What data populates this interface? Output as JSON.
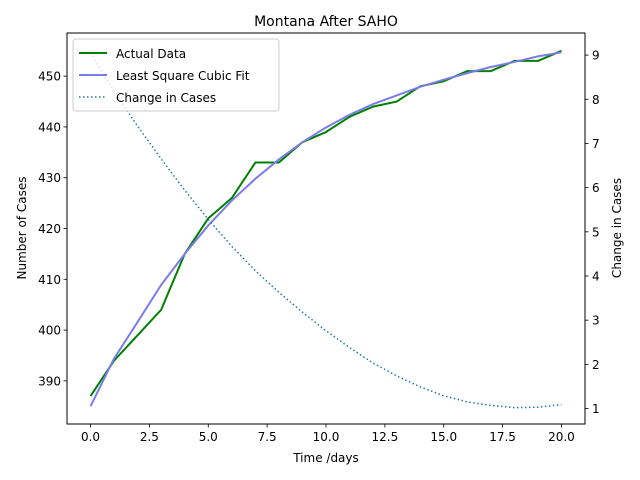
{
  "chart_data": {
    "type": "line",
    "title": "Montana After SAHO",
    "xlabel": "Time /days",
    "ylabel": "Number of Cases",
    "y2label": "Change in Cases",
    "xlim": [
      -1,
      21
    ],
    "ylim": [
      381.5,
      458.5
    ],
    "y2lim": [
      0.65,
      9.5
    ],
    "xticks": [
      "0.0",
      "2.5",
      "5.0",
      "7.5",
      "10.0",
      "12.5",
      "15.0",
      "17.5",
      "20.0"
    ],
    "xtick_values": [
      0,
      2.5,
      5,
      7.5,
      10,
      12.5,
      15,
      17.5,
      20
    ],
    "yticks": [
      390,
      400,
      410,
      420,
      430,
      440,
      450
    ],
    "y2ticks": [
      1,
      2,
      3,
      4,
      5,
      6,
      7,
      8,
      9
    ],
    "legend_position": "upper-left",
    "grid": false,
    "x": [
      0,
      1,
      2,
      3,
      4,
      5,
      6,
      7,
      8,
      9,
      10,
      11,
      12,
      13,
      14,
      15,
      16,
      17,
      18,
      19,
      20
    ],
    "series": [
      {
        "name": "Actual Data",
        "axis": "left",
        "color": "#008000",
        "style": "solid",
        "values": [
          387,
          394,
          399,
          404,
          415,
          422,
          426,
          433,
          433,
          437,
          439,
          442,
          444,
          445,
          448,
          449,
          451,
          451,
          453,
          453,
          455
        ]
      },
      {
        "name": "Least Square Cubic Fit",
        "axis": "left",
        "color": "#7b7bea",
        "style": "solid",
        "values": [
          385.0,
          394.4,
          401.6,
          408.9,
          415.0,
          420.6,
          425.5,
          429.8,
          433.6,
          437.0,
          439.9,
          442.4,
          444.5,
          446.2,
          447.9,
          449.3,
          450.6,
          451.8,
          452.8,
          453.9,
          454.7
        ]
      },
      {
        "name": "Change in Cases",
        "axis": "right",
        "color": "#1f77b4",
        "style": "dotted",
        "values": [
          9.05,
          8.18,
          7.39,
          6.65,
          5.94,
          5.28,
          4.67,
          4.12,
          3.63,
          3.18,
          2.76,
          2.38,
          2.03,
          1.74,
          1.49,
          1.29,
          1.15,
          1.07,
          1.02,
          1.03,
          1.09
        ]
      }
    ]
  }
}
